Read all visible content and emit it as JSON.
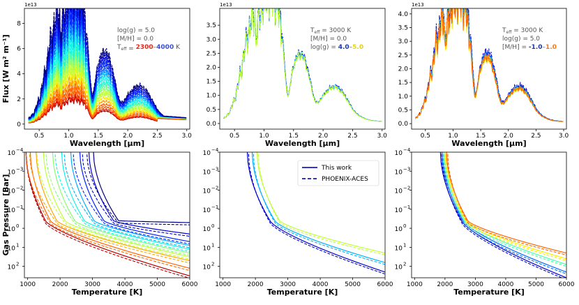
{
  "chart_data": [
    {
      "id": "flux-teff",
      "type": "line",
      "title": "",
      "xlabel": "Wavelength [μm]",
      "ylabel": "Flux [W m² m⁻¹]",
      "offset": "1e13",
      "xlim": [
        0.25,
        3.05
      ],
      "ylim": [
        -0.4,
        9.2
      ],
      "xticks": [
        "0.5",
        "1.0",
        "1.5",
        "2.0",
        "2.5",
        "3.0"
      ],
      "yticks": [
        "0",
        "2",
        "4",
        "6",
        "8"
      ],
      "annotation": {
        "line1": "log(g) = 5.0",
        "line2": "[M/H] = 0.0",
        "line3_label": "T",
        "line3_sub": "eff",
        "line3_eq": " = ",
        "range_low": "2300",
        "dash": "–",
        "range_high": "4000",
        "unit": " K"
      },
      "series_param": "Teff",
      "series_values": [
        2300,
        2400,
        2500,
        2600,
        2700,
        2800,
        2900,
        3000,
        3100,
        3200,
        3300,
        3400,
        3500,
        3600,
        3700,
        3800,
        3900,
        4000
      ],
      "peak_values": [
        1.6,
        1.8,
        2.1,
        2.4,
        2.8,
        3.2,
        3.6,
        3.9,
        4.3,
        4.7,
        5.1,
        5.6,
        6.1,
        6.6,
        7.2,
        7.7,
        8.2,
        8.8
      ],
      "tail_values": [
        0.45,
        0.47,
        0.49,
        0.5,
        0.52,
        0.54,
        0.55,
        0.56,
        0.57,
        0.58,
        0.59,
        0.6,
        0.61,
        0.62,
        0.63,
        0.64,
        0.65,
        0.66
      ]
    },
    {
      "id": "flux-logg",
      "type": "line",
      "xlabel": "Wavelength [μm]",
      "offset": "1e13",
      "xlim": [
        0.25,
        3.05
      ],
      "ylim": [
        -0.2,
        4.1
      ],
      "xticks": [
        "0.5",
        "1.0",
        "1.5",
        "2.0",
        "2.5",
        "3.0"
      ],
      "yticks": [
        "0.0",
        "0.5",
        "1.0",
        "1.5",
        "2.0",
        "2.5",
        "3.0",
        "3.5"
      ],
      "annotation": {
        "line1_label": "T",
        "line1_sub": "eff",
        "line1_rest": " = 3000 K",
        "line2": "[M/H] = 0.0",
        "line3": "log(g) = ",
        "range_low": "4.0",
        "dash": "–",
        "range_high": "5.0"
      },
      "series_param": "log(g)",
      "series_values": [
        4.0,
        4.5,
        5.0
      ],
      "peak_values": [
        3.8,
        3.75,
        3.7
      ]
    },
    {
      "id": "flux-mh",
      "type": "line",
      "xlabel": "Wavelength [μm]",
      "offset": "1e13",
      "xlim": [
        0.25,
        3.05
      ],
      "ylim": [
        -0.2,
        4.2
      ],
      "xticks": [
        "0.5",
        "1.0",
        "1.5",
        "2.0",
        "2.5",
        "3.0"
      ],
      "yticks": [
        "0.0",
        "0.5",
        "1.0",
        "1.5",
        "2.0",
        "2.5",
        "3.0",
        "3.5",
        "4.0"
      ],
      "annotation": {
        "line1_label": "T",
        "line1_sub": "eff",
        "line1_rest": " = 3000 K",
        "line2": "log(g) = 5.0",
        "line3": "[M/H] = ",
        "range_low": "-1.0",
        "dash": "–",
        "range_high": "1.0"
      },
      "series_param": "[M/H]",
      "series_values": [
        -1.0,
        -0.5,
        0.0,
        0.5,
        1.0
      ],
      "peak_values": [
        4.0,
        3.85,
        3.7,
        3.6,
        3.7
      ]
    },
    {
      "id": "pt-teff",
      "type": "line",
      "xlabel": "Temperature [K]",
      "ylabel": "Gas Pressure [Bar]",
      "xlim": [
        900,
        6000
      ],
      "ylim_log10": [
        -4,
        2.6
      ],
      "xticks": [
        "1000",
        "2000",
        "3000",
        "4000",
        "5000",
        "6000"
      ],
      "yticks": [
        {
          "base": "10",
          "exp": "−4"
        },
        {
          "base": "10",
          "exp": "−3"
        },
        {
          "base": "10",
          "exp": "−2"
        },
        {
          "base": "10",
          "exp": "−1"
        },
        {
          "base": "10",
          "exp": "0"
        },
        {
          "base": "10",
          "exp": "1"
        },
        {
          "base": "10",
          "exp": "2"
        }
      ],
      "series_param": "Teff",
      "series_values": [
        2300,
        2400,
        2500,
        2600,
        2700,
        2800,
        2900,
        3000,
        3100,
        3200,
        3300,
        3400,
        3500,
        3600,
        3700,
        3800,
        3900,
        4000
      ],
      "kink_temperature": [
        1550,
        1600,
        1700,
        1800,
        1900,
        2000,
        2150,
        2300,
        2450,
        2600,
        2750,
        2900,
        3050,
        3200,
        3350,
        3500,
        3650,
        3800
      ],
      "end_log10_pressure": [
        2.5,
        2.3,
        2.1,
        1.9,
        1.7,
        1.6,
        1.5,
        1.4,
        1.3,
        1.2,
        1.1,
        1.0,
        0.9,
        0.8,
        0.7,
        0.5,
        0.3,
        -0.3
      ]
    },
    {
      "id": "pt-logg",
      "type": "line",
      "xlabel": "Temperature [K]",
      "xlim": [
        900,
        6000
      ],
      "ylim_log10": [
        -4,
        2.6
      ],
      "xticks": [
        "1000",
        "2000",
        "3000",
        "4000",
        "5000",
        "6000"
      ],
      "yticks": [
        {
          "base": "10",
          "exp": "−4"
        },
        {
          "base": "10",
          "exp": "−3"
        },
        {
          "base": "10",
          "exp": "−2"
        },
        {
          "base": "10",
          "exp": "−1"
        },
        {
          "base": "10",
          "exp": "0"
        },
        {
          "base": "10",
          "exp": "1"
        },
        {
          "base": "10",
          "exp": "2"
        }
      ],
      "legend": {
        "solid": "This work",
        "dashed": "PHOENIX-ACES",
        "placement": "top-right"
      },
      "series_param": "log(g)",
      "series_values": [
        5.0,
        4.5,
        4.0
      ],
      "start_temperature": [
        1750,
        1900,
        2050
      ],
      "end_log10_pressure": [
        2.3,
        1.8,
        1.3
      ]
    },
    {
      "id": "pt-mh",
      "type": "line",
      "xlabel": "Temperature [K]",
      "xlim": [
        900,
        6000
      ],
      "ylim_log10": [
        -4,
        2.6
      ],
      "xticks": [
        "1000",
        "2000",
        "3000",
        "4000",
        "5000",
        "6000"
      ],
      "yticks": [
        {
          "base": "10",
          "exp": "−4"
        },
        {
          "base": "10",
          "exp": "−3"
        },
        {
          "base": "10",
          "exp": "−2"
        },
        {
          "base": "10",
          "exp": "−1"
        },
        {
          "base": "10",
          "exp": "0"
        },
        {
          "base": "10",
          "exp": "1"
        },
        {
          "base": "10",
          "exp": "2"
        }
      ],
      "series_param": "[M/H]",
      "series_values": [
        -1.0,
        -0.5,
        0.0,
        0.5,
        1.0
      ],
      "start_temperature": [
        1850,
        1900,
        1950,
        2000,
        2050
      ],
      "end_log10_pressure": [
        2.6,
        2.3,
        1.9,
        1.6,
        1.3
      ]
    }
  ],
  "colors": {
    "jet": [
      "#00007f",
      "#0000d4",
      "#0022ff",
      "#0069ff",
      "#00b0ff",
      "#12f4e4",
      "#4dffaa",
      "#87ff70",
      "#c1ff36",
      "#faeb00",
      "#ffa700",
      "#ff6400",
      "#f32000",
      "#b40000"
    ],
    "annotation_text": "#555555",
    "low_teff": "#e8281e",
    "high_teff": "#3a4fd6",
    "low_logg": "#1a3aa8",
    "high_logg": "#e6d21a",
    "low_mh": "#1a3aa8",
    "high_mh": "#f07a1a",
    "legend_line": "#1414c8"
  }
}
